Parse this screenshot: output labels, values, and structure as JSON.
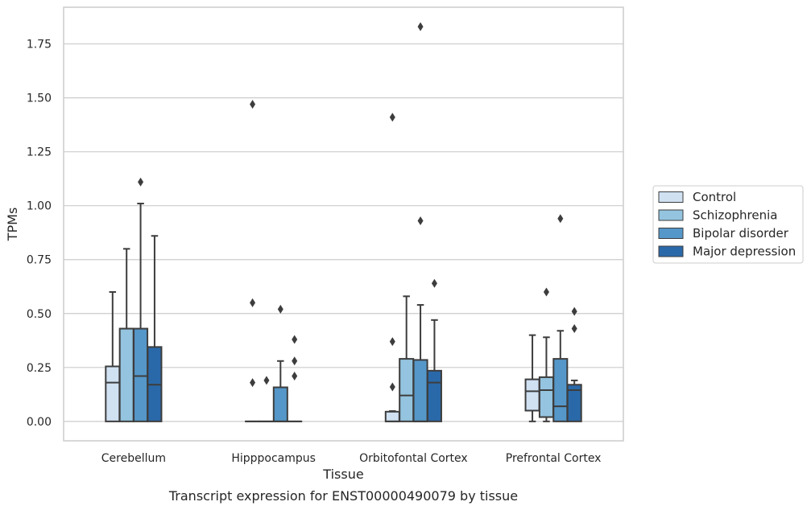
{
  "chart_data": {
    "type": "box",
    "title": "",
    "xlabel": "Tissue",
    "ylabel": "TPMs",
    "caption": "Transcript expression for ENST00000490079 by tissue",
    "ylim": [
      -0.09,
      1.92
    ],
    "yticks": [
      0.0,
      0.25,
      0.5,
      0.75,
      1.0,
      1.25,
      1.5,
      1.75
    ],
    "ytick_labels": [
      "0.00",
      "0.25",
      "0.50",
      "0.75",
      "1.00",
      "1.25",
      "1.50",
      "1.75"
    ],
    "grid": "horizontal",
    "legend_position": "right",
    "categories": [
      "Cerebellum",
      "Hipppocampus",
      "Orbitofontal Cortex",
      "Prefrontal Cortex"
    ],
    "series": [
      {
        "name": "Control",
        "color": "#d0e1f2",
        "boxes": [
          {
            "q1": 0.0,
            "median": 0.18,
            "q3": 0.255,
            "whisker_low": 0.0,
            "whisker_high": 0.6,
            "outliers": []
          },
          {
            "q1": 0.0,
            "median": 0.0,
            "q3": 0.0,
            "whisker_low": 0.0,
            "whisker_high": 0.0,
            "outliers": [
              0.18,
              0.55,
              1.47
            ]
          },
          {
            "q1": 0.0,
            "median": 0.0,
            "q3": 0.045,
            "whisker_low": 0.0,
            "whisker_high": 0.048,
            "outliers": [
              0.16,
              0.37,
              1.41
            ]
          },
          {
            "q1": 0.05,
            "median": 0.14,
            "q3": 0.195,
            "whisker_low": 0.0,
            "whisker_high": 0.4,
            "outliers": []
          }
        ]
      },
      {
        "name": "Schizophrenia",
        "color": "#94c4df",
        "boxes": [
          {
            "q1": 0.0,
            "median": 0.43,
            "q3": 0.43,
            "whisker_low": 0.0,
            "whisker_high": 0.8,
            "outliers": []
          },
          {
            "q1": 0.0,
            "median": 0.0,
            "q3": 0.0,
            "whisker_low": 0.0,
            "whisker_high": 0.0,
            "outliers": [
              0.19
            ]
          },
          {
            "q1": 0.0,
            "median": 0.12,
            "q3": 0.29,
            "whisker_low": 0.0,
            "whisker_high": 0.58,
            "outliers": []
          },
          {
            "q1": 0.02,
            "median": 0.145,
            "q3": 0.205,
            "whisker_low": 0.0,
            "whisker_high": 0.39,
            "outliers": [
              0.6
            ]
          }
        ]
      },
      {
        "name": "Bipolar disorder",
        "color": "#5597c9",
        "boxes": [
          {
            "q1": 0.0,
            "median": 0.21,
            "q3": 0.43,
            "whisker_low": 0.0,
            "whisker_high": 1.01,
            "outliers": [
              1.11
            ]
          },
          {
            "q1": 0.0,
            "median": 0.0,
            "q3": 0.158,
            "whisker_low": 0.0,
            "whisker_high": 0.28,
            "outliers": [
              0.52
            ]
          },
          {
            "q1": 0.0,
            "median": 0.0,
            "q3": 0.285,
            "whisker_low": 0.0,
            "whisker_high": 0.54,
            "outliers": [
              0.93,
              1.83
            ]
          },
          {
            "q1": 0.0,
            "median": 0.07,
            "q3": 0.29,
            "whisker_low": 0.0,
            "whisker_high": 0.42,
            "outliers": [
              0.94
            ]
          }
        ]
      },
      {
        "name": "Major depression",
        "color": "#2a69a9",
        "boxes": [
          {
            "q1": 0.0,
            "median": 0.17,
            "q3": 0.345,
            "whisker_low": 0.0,
            "whisker_high": 0.86,
            "outliers": []
          },
          {
            "q1": 0.0,
            "median": 0.0,
            "q3": 0.0,
            "whisker_low": 0.0,
            "whisker_high": 0.0,
            "outliers": [
              0.21,
              0.28,
              0.38
            ]
          },
          {
            "q1": 0.0,
            "median": 0.18,
            "q3": 0.235,
            "whisker_low": 0.0,
            "whisker_high": 0.47,
            "outliers": [
              0.64
            ]
          },
          {
            "q1": 0.0,
            "median": 0.145,
            "q3": 0.17,
            "whisker_low": 0.0,
            "whisker_high": 0.19,
            "outliers": [
              0.43,
              0.51
            ]
          }
        ]
      }
    ]
  }
}
